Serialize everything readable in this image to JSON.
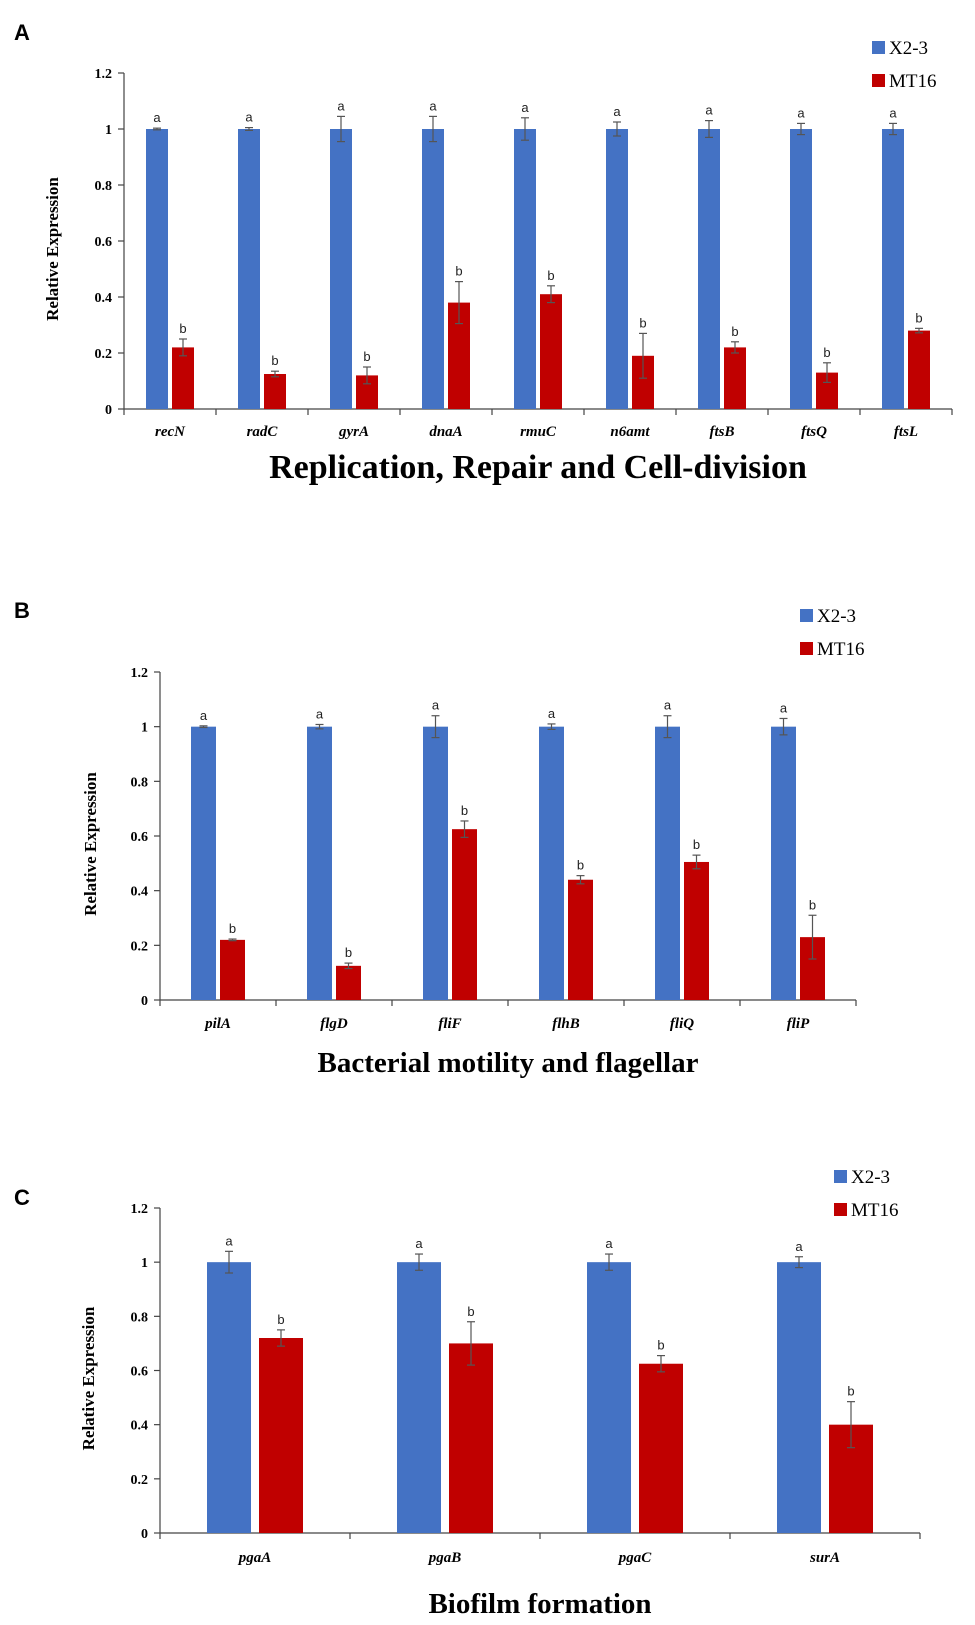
{
  "chart_data": [
    {
      "panel": "A",
      "type": "bar",
      "title": "Replication, Repair and Cell-division",
      "xlabel": "Replication, Repair and Cell-division",
      "ylabel": "Relative Expression",
      "ylim": [
        0,
        1.2
      ],
      "yticks": [
        "0",
        "0.2",
        "0.4",
        "0.6",
        "0.8",
        "1",
        "1.2"
      ],
      "categories": [
        "recN",
        "radC",
        "gyrA",
        "dnaA",
        "rmuC",
        "n6amt",
        "ftsB",
        "ftsQ",
        "ftsL"
      ],
      "legend_position": "top-right",
      "series": [
        {
          "name": "X2-3",
          "color": "#4472C4",
          "values": [
            1,
            1,
            1,
            1,
            1,
            1,
            1,
            1,
            1
          ],
          "errors": [
            0.003,
            0.005,
            0.045,
            0.045,
            0.04,
            0.025,
            0.03,
            0.02,
            0.02
          ],
          "labels": [
            "a",
            "a",
            "a",
            "a",
            "a",
            "a",
            "a",
            "a",
            "a"
          ]
        },
        {
          "name": "MT16",
          "color": "#C00000",
          "values": [
            0.22,
            0.125,
            0.12,
            0.38,
            0.41,
            0.19,
            0.22,
            0.13,
            0.28
          ],
          "errors": [
            0.03,
            0.01,
            0.03,
            0.075,
            0.03,
            0.08,
            0.02,
            0.035,
            0.008
          ],
          "labels": [
            "b",
            "b",
            "b",
            "b",
            "b",
            "b",
            "b",
            "b",
            "b"
          ]
        }
      ]
    },
    {
      "panel": "B",
      "type": "bar",
      "title": "Bacterial  motility and flagellar",
      "xlabel": "Bacterial  motility and flagellar",
      "ylabel": "Relative Expression",
      "ylim": [
        0,
        1.2
      ],
      "yticks": [
        "0",
        "0.2",
        "0.4",
        "0.6",
        "0.8",
        "1",
        "1.2"
      ],
      "categories": [
        "pilA",
        "flgD",
        "fliF",
        "flhB",
        "fliQ",
        "fliP"
      ],
      "legend_position": "top-right",
      "series": [
        {
          "name": "X2-3",
          "color": "#4472C4",
          "values": [
            1,
            1,
            1,
            1,
            1,
            1
          ],
          "errors": [
            0.003,
            0.008,
            0.04,
            0.01,
            0.04,
            0.03
          ],
          "labels": [
            "a",
            "a",
            "a",
            "a",
            "a",
            "a"
          ]
        },
        {
          "name": "MT16",
          "color": "#C00000",
          "values": [
            0.22,
            0.125,
            0.625,
            0.44,
            0.505,
            0.23
          ],
          "errors": [
            0.003,
            0.01,
            0.03,
            0.015,
            0.025,
            0.08
          ],
          "labels": [
            "b",
            "b",
            "b",
            "b",
            "b",
            "b"
          ]
        }
      ]
    },
    {
      "panel": "C",
      "type": "bar",
      "title": "Biofilm formation",
      "xlabel": "Biofilm formation",
      "ylabel": "Relative Expression",
      "ylim": [
        0,
        1.2
      ],
      "yticks": [
        "0",
        "0.2",
        "0.4",
        "0.6",
        "0.8",
        "1",
        "1.2"
      ],
      "categories": [
        "pgaA",
        "pgaB",
        "pgaC",
        "surA"
      ],
      "legend_position": "top-right",
      "series": [
        {
          "name": "X2-3",
          "color": "#4472C4",
          "values": [
            1,
            1,
            1,
            1
          ],
          "errors": [
            0.04,
            0.03,
            0.03,
            0.02
          ],
          "labels": [
            "a",
            "a",
            "a",
            "a"
          ]
        },
        {
          "name": "MT16",
          "color": "#C00000",
          "values": [
            0.72,
            0.7,
            0.625,
            0.4
          ],
          "errors": [
            0.03,
            0.08,
            0.03,
            0.085
          ],
          "labels": [
            "b",
            "b",
            "b",
            "b"
          ]
        }
      ]
    }
  ]
}
